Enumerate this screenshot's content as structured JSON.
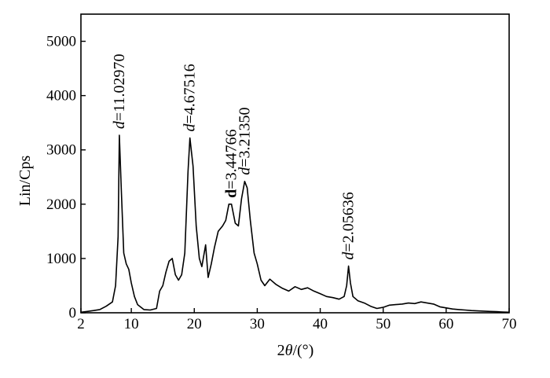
{
  "chart_data": {
    "type": "line",
    "title": "",
    "xlabel_prefix": "2",
    "xlabel_symbol": "θ",
    "xlabel_suffix": "/(°)",
    "ylabel": "Lin/Cps",
    "xlim": [
      2,
      70
    ],
    "ylim": [
      0,
      5500
    ],
    "x_ticks": [
      2,
      10,
      20,
      30,
      40,
      50,
      60,
      70
    ],
    "y_ticks": [
      0,
      1000,
      2000,
      3000,
      4000,
      5000
    ],
    "grid": false,
    "legend": "none",
    "series": [
      {
        "points": [
          [
            2.0,
            10
          ],
          [
            3.0,
            25
          ],
          [
            4.0,
            40
          ],
          [
            5.0,
            60
          ],
          [
            6.0,
            120
          ],
          [
            7.0,
            200
          ],
          [
            7.5,
            500
          ],
          [
            7.9,
            1400
          ],
          [
            8.1,
            3270
          ],
          [
            8.4,
            2300
          ],
          [
            8.8,
            1100
          ],
          [
            9.2,
            900
          ],
          [
            9.6,
            800
          ],
          [
            10.0,
            550
          ],
          [
            10.5,
            300
          ],
          [
            11.0,
            150
          ],
          [
            12.0,
            60
          ],
          [
            13.0,
            50
          ],
          [
            14.0,
            80
          ],
          [
            14.5,
            400
          ],
          [
            15.0,
            500
          ],
          [
            15.5,
            750
          ],
          [
            16.0,
            950
          ],
          [
            16.5,
            1000
          ],
          [
            17.0,
            700
          ],
          [
            17.5,
            600
          ],
          [
            18.0,
            700
          ],
          [
            18.5,
            1100
          ],
          [
            19.0,
            2600
          ],
          [
            19.3,
            3220
          ],
          [
            19.8,
            2700
          ],
          [
            20.3,
            1600
          ],
          [
            20.8,
            1000
          ],
          [
            21.2,
            850
          ],
          [
            21.8,
            1250
          ],
          [
            22.2,
            650
          ],
          [
            22.7,
            900
          ],
          [
            23.2,
            1200
          ],
          [
            23.8,
            1500
          ],
          [
            24.5,
            1600
          ],
          [
            25.0,
            1700
          ],
          [
            25.5,
            2000
          ],
          [
            25.9,
            2000
          ],
          [
            26.5,
            1650
          ],
          [
            27.0,
            1600
          ],
          [
            27.5,
            2100
          ],
          [
            28.0,
            2420
          ],
          [
            28.4,
            2300
          ],
          [
            28.9,
            1700
          ],
          [
            29.5,
            1100
          ],
          [
            30.0,
            900
          ],
          [
            30.6,
            600
          ],
          [
            31.2,
            500
          ],
          [
            32.0,
            620
          ],
          [
            33.0,
            520
          ],
          [
            34.0,
            450
          ],
          [
            35.0,
            400
          ],
          [
            36.0,
            480
          ],
          [
            37.0,
            430
          ],
          [
            38.0,
            460
          ],
          [
            39.0,
            400
          ],
          [
            40.0,
            350
          ],
          [
            41.0,
            300
          ],
          [
            42.0,
            280
          ],
          [
            43.0,
            250
          ],
          [
            43.8,
            300
          ],
          [
            44.2,
            500
          ],
          [
            44.5,
            860
          ],
          [
            44.8,
            550
          ],
          [
            45.2,
            300
          ],
          [
            46.0,
            220
          ],
          [
            47.0,
            180
          ],
          [
            48.0,
            120
          ],
          [
            49.0,
            80
          ],
          [
            50.0,
            100
          ],
          [
            51.0,
            140
          ],
          [
            52.0,
            150
          ],
          [
            53.0,
            160
          ],
          [
            54.0,
            180
          ],
          [
            55.0,
            170
          ],
          [
            56.0,
            200
          ],
          [
            57.0,
            180
          ],
          [
            58.0,
            160
          ],
          [
            59.0,
            110
          ],
          [
            60.0,
            90
          ],
          [
            61.0,
            70
          ],
          [
            62.0,
            60
          ],
          [
            63.0,
            50
          ],
          [
            64.0,
            40
          ],
          [
            65.0,
            35
          ],
          [
            66.0,
            30
          ],
          [
            67.0,
            25
          ],
          [
            68.0,
            20
          ],
          [
            69.0,
            15
          ],
          [
            70.0,
            10
          ]
        ]
      }
    ],
    "annotations": [
      {
        "x": 8.1,
        "y": 3270,
        "pre": "d",
        "val": "=11.02970",
        "bold": false
      },
      {
        "x": 19.3,
        "y": 3220,
        "pre": "d",
        "val": "=4.67516",
        "bold": false
      },
      {
        "x": 25.9,
        "y": 2000,
        "pre": "d",
        "val": "=3.44766",
        "bold": true
      },
      {
        "x": 28.0,
        "y": 2420,
        "pre": "d",
        "val": "=3.21350",
        "bold": false
      },
      {
        "x": 44.5,
        "y": 860,
        "pre": "d",
        "val": "=2.05636",
        "bold": false
      }
    ]
  }
}
